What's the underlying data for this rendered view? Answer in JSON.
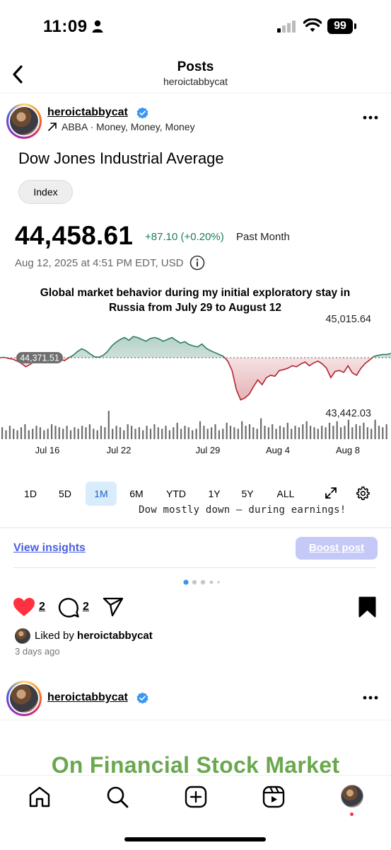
{
  "status_bar": {
    "time": "11:09",
    "battery": "99"
  },
  "header": {
    "title": "Posts",
    "subtitle": "heroictabbycat"
  },
  "post": {
    "username": "heroictabbycat",
    "music": "ABBA · Money, Money, Money"
  },
  "card": {
    "name": "Dow Jones Industrial Average",
    "chip": "Index",
    "price": "44,458.61",
    "change": "+87.10 (+0.20%)",
    "period": "Past Month",
    "timestamp": "Aug 12, 2025 at 4:51 PM EDT, USD",
    "caption": "Dow mostly down – during earnings!",
    "ranges": [
      "1D",
      "5D",
      "1M",
      "6M",
      "YTD",
      "1Y",
      "5Y",
      "ALL"
    ],
    "active_range": "1M"
  },
  "chart_data": {
    "type": "line",
    "title": "Global market behavior during my initial exploratory stay in Russia from July 29 to August 12",
    "baseline_label": "44,371.51",
    "baseline": 44371.51,
    "high_label": "45,015.64",
    "low_label": "43,442.03",
    "x_ticks": [
      "Jul 16",
      "Jul 22",
      "Jul 29",
      "Aug 4",
      "Aug 8"
    ],
    "series": [
      {
        "values": [
          44372,
          44380,
          44355,
          44340,
          44300,
          44250,
          44180,
          44230,
          44290,
          44350,
          44395,
          44360,
          44330,
          44390,
          44340,
          44310,
          44370,
          44420,
          44500,
          44560,
          44520,
          44450,
          44390,
          44380,
          44420,
          44500,
          44620,
          44700,
          44760,
          44800,
          44740,
          44820,
          44800,
          44760,
          44720,
          44780,
          44800,
          44770,
          44720,
          44760,
          44800,
          44740,
          44680,
          44710,
          44650,
          44620,
          44600,
          44660,
          44570,
          44520,
          44480,
          44440,
          44400,
          44300,
          44100,
          43700,
          43480,
          43520,
          43600,
          43760,
          43900,
          43800,
          43950,
          44000,
          43980,
          44100,
          44120,
          44150,
          44200,
          44180,
          44240,
          44280,
          44200,
          44260,
          44300,
          44240,
          44150,
          43950,
          44080,
          44100,
          44060,
          44200,
          44050,
          44000,
          44150,
          44250,
          44320,
          44400,
          44420,
          44440,
          44440,
          44459
        ]
      }
    ],
    "volume": [
      8,
      6,
      9,
      7,
      6,
      8,
      10,
      6,
      7,
      9,
      8,
      6,
      7,
      10,
      9,
      8,
      7,
      9,
      6,
      8,
      7,
      9,
      8,
      10,
      7,
      6,
      9,
      8,
      19,
      7,
      9,
      8,
      6,
      10,
      9,
      7,
      8,
      6,
      9,
      7,
      10,
      8,
      7,
      9,
      6,
      8,
      11,
      7,
      9,
      8,
      6,
      7,
      12,
      9,
      7,
      8,
      10,
      6,
      7,
      11,
      9,
      8,
      7,
      12,
      9,
      10,
      8,
      7,
      14,
      9,
      8,
      10,
      7,
      9,
      8,
      11,
      7,
      9,
      8,
      10,
      12,
      9,
      8,
      7,
      9,
      8,
      11,
      9,
      12,
      8,
      9,
      13,
      8,
      10,
      9,
      11,
      8,
      7,
      13,
      9,
      8,
      10
    ],
    "ylim": [
      43442.03,
      45015.64
    ]
  },
  "insights": {
    "view_label": "View insights",
    "boost_label": "Boost post"
  },
  "actions": {
    "likes": "2",
    "comments": "2"
  },
  "liked": {
    "prefix": "Liked by",
    "user": "heroictabbycat",
    "ago": "3 days ago"
  },
  "next_post": {
    "username": "heroictabbycat",
    "preview_title": "On Financial Stock Market"
  },
  "colors": {
    "up": "#2e7d62",
    "down": "#b3232f",
    "accent": "#4a5fe0",
    "like": "#ff3040",
    "preview": "#6aa84f"
  }
}
